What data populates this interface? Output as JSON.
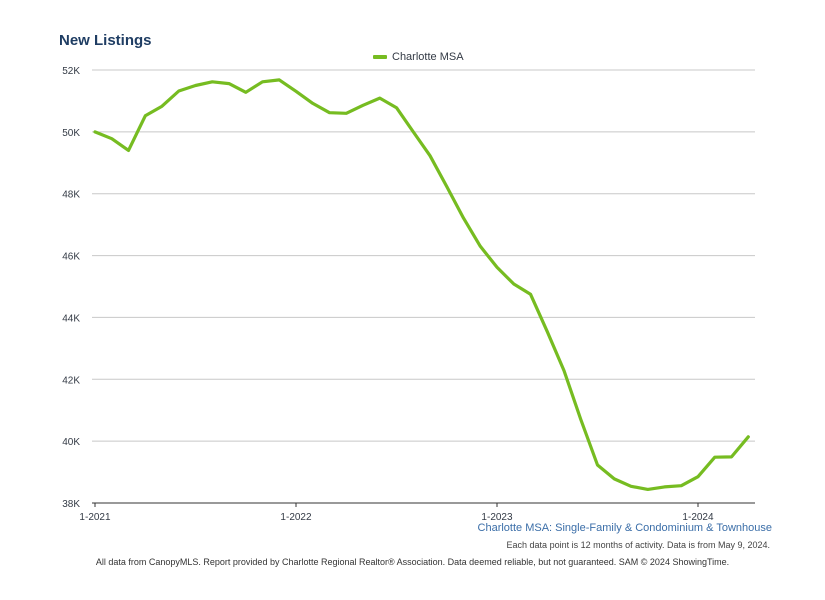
{
  "header": {
    "title": "New Listings"
  },
  "colors": {
    "series": "#76bc21",
    "grid": "#c8c8c8",
    "axis": "#333333"
  },
  "chart_data": {
    "type": "line",
    "title": "New Listings",
    "xlabel": "",
    "ylabel": "",
    "x_tick_labels": [
      "1-2021",
      "1-2022",
      "1-2023",
      "1-2024"
    ],
    "y_tick_labels": [
      "38K",
      "40K",
      "42K",
      "44K",
      "46K",
      "48K",
      "50K",
      "52K"
    ],
    "ylim": [
      38000,
      52000
    ],
    "grid": true,
    "legend_position": "top-center",
    "series": [
      {
        "name": "Charlotte MSA",
        "x": [
          "2021-01",
          "2021-02",
          "2021-03",
          "2021-04",
          "2021-05",
          "2021-06",
          "2021-07",
          "2021-08",
          "2021-09",
          "2021-10",
          "2021-11",
          "2021-12",
          "2022-01",
          "2022-02",
          "2022-03",
          "2022-04",
          "2022-05",
          "2022-06",
          "2022-07",
          "2022-08",
          "2022-09",
          "2022-10",
          "2022-11",
          "2022-12",
          "2023-01",
          "2023-02",
          "2023-03",
          "2023-04",
          "2023-05",
          "2023-06",
          "2023-07",
          "2023-08",
          "2023-09",
          "2023-10",
          "2023-11",
          "2023-12",
          "2024-01",
          "2024-02",
          "2024-03",
          "2024-04"
        ],
        "values": [
          50000,
          49780,
          49400,
          50520,
          50830,
          51320,
          51500,
          51620,
          51560,
          51280,
          51620,
          51680,
          51310,
          50920,
          50620,
          50600,
          50860,
          51090,
          50780,
          50000,
          49230,
          48230,
          47210,
          46300,
          45620,
          45080,
          44750,
          43540,
          42280,
          40700,
          39230,
          38780,
          38540,
          38440,
          38520,
          38560,
          38850,
          39480,
          39490,
          40140
        ]
      }
    ]
  },
  "footnotes": {
    "subtitle": "Charlotte MSA: Single-Family & Condominium & Townhouse",
    "note": "Each data point is 12 months of activity. Data is from May 9, 2024.",
    "source": "All data from CanopyMLS. Report provided by Charlotte Regional Realtor® Association. Data deemed reliable, but not guaranteed. SAM © 2024 ShowingTime."
  }
}
